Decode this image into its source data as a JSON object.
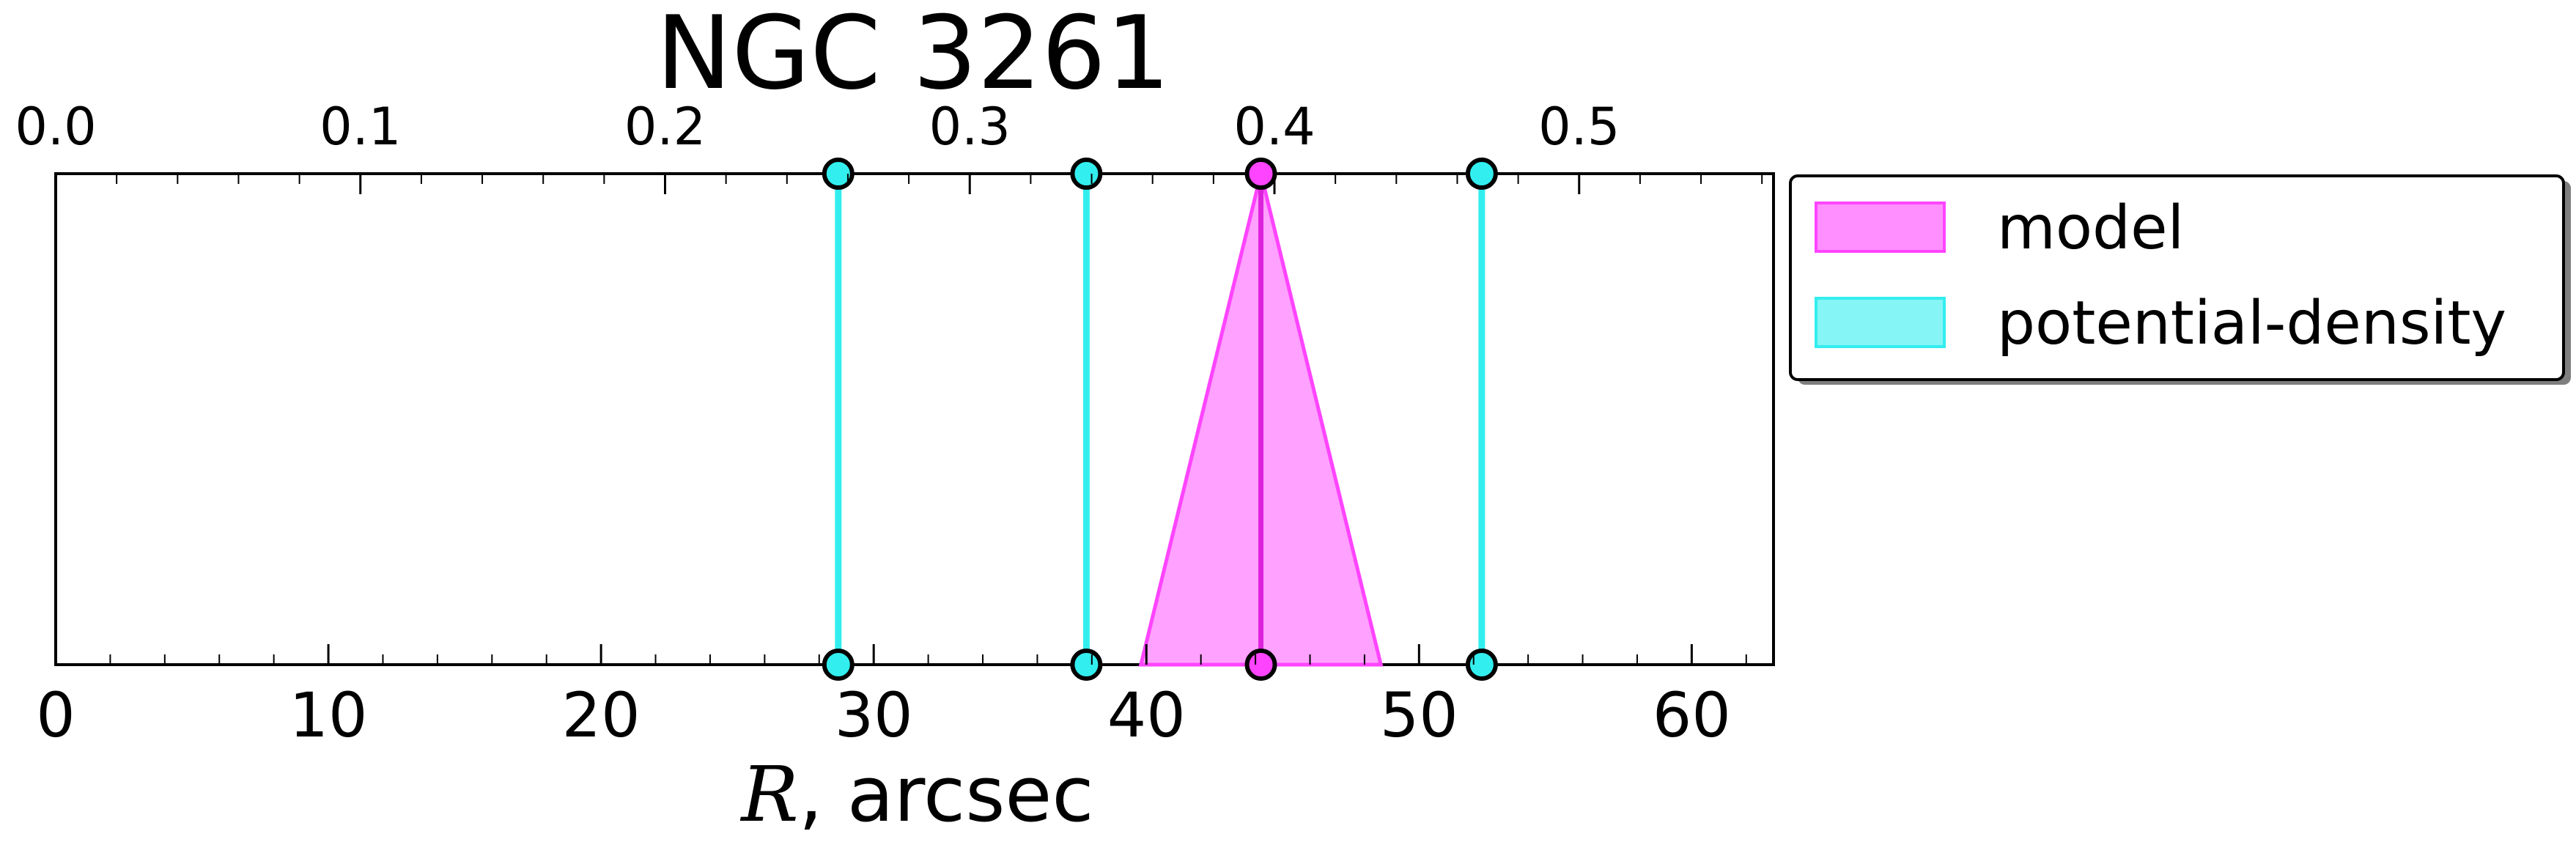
{
  "chart_data": {
    "type": "line",
    "title": "NGC 3261",
    "xlabel_symbol": "R",
    "xlabel_rest": ", arcsec",
    "xlim": [
      0,
      63
    ],
    "x_ticks": [
      "0",
      "10",
      "20",
      "30",
      "40",
      "50",
      "60"
    ],
    "top_axis": {
      "xlim": [
        0.0,
        0.5638
      ],
      "ticks": [
        "0.0",
        "0.1",
        "0.2",
        "0.3",
        "0.4",
        "0.5"
      ]
    },
    "grid": false,
    "legend": {
      "placement": "outside-right-top",
      "entries": [
        {
          "name": "model",
          "color": "#ff44ff"
        },
        {
          "name": "potential-density",
          "color": "#33eeee"
        }
      ]
    },
    "series": [
      {
        "name": "model",
        "color": "#ff44ff",
        "type": "band",
        "center": 44.2,
        "band_top": [
          44.2,
          44.2
        ],
        "band_bottom": [
          39.8,
          48.6
        ]
      },
      {
        "name": "potential-density",
        "color": "#33eeee",
        "type": "vlines",
        "x": [
          28.7,
          37.8,
          52.3
        ]
      }
    ]
  }
}
